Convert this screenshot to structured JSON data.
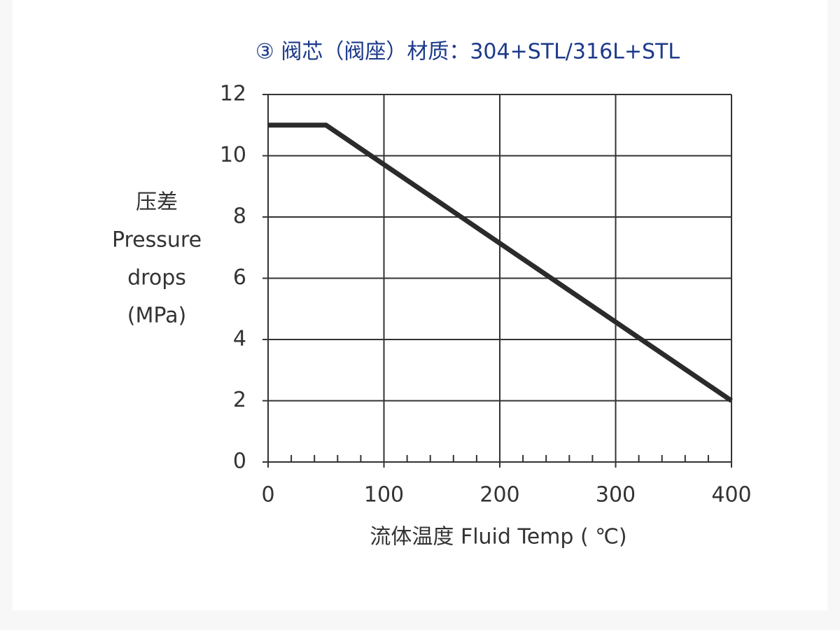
{
  "chart_data": {
    "type": "line",
    "title": "③ 阀芯（阀座）材质：304+STL/316L+STL",
    "ylabel": [
      "压差",
      "Pressure",
      "drops",
      "(MPa)"
    ],
    "xlabel": "流体温度    Fluid Temp ( ℃)",
    "x": [
      0,
      50,
      400
    ],
    "values": [
      11,
      11,
      2
    ],
    "color": "#2b2b2b",
    "xlim": [
      0,
      400
    ],
    "xticks": [
      0,
      100,
      200,
      300,
      400
    ],
    "x_minor_ticks": [
      20,
      40,
      60,
      80,
      120,
      140,
      160,
      180,
      220,
      240,
      260,
      280,
      320,
      340,
      360,
      380
    ],
    "ylim": [
      0,
      12
    ],
    "yticks": [
      0,
      2,
      4,
      6,
      8,
      10,
      12
    ],
    "grid": true
  }
}
